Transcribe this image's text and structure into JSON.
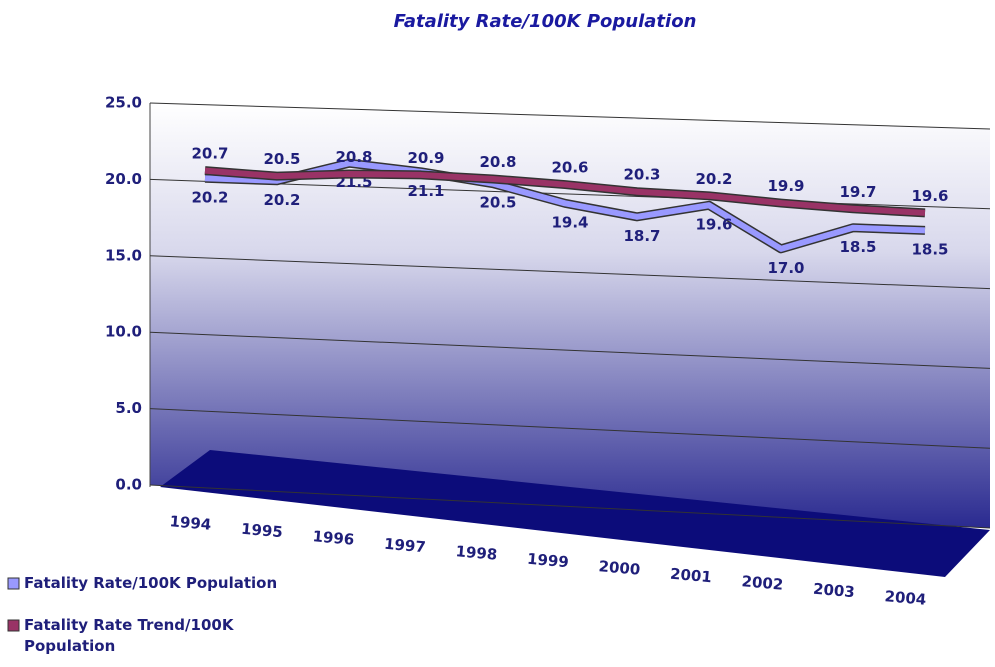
{
  "chart_data": {
    "type": "line",
    "title": "Fatality Rate/100K Population",
    "categories": [
      "1994",
      "1995",
      "1996",
      "1997",
      "1998",
      "1999",
      "2000",
      "2001",
      "2002",
      "2003",
      "2004"
    ],
    "series": [
      {
        "name": "Fatality Rate/100K Population",
        "color": "#9999ff",
        "values": [
          20.2,
          20.2,
          21.5,
          21.1,
          20.5,
          19.4,
          18.7,
          19.6,
          17.0,
          18.5,
          18.5
        ],
        "value_labels": [
          "20.2",
          "20.2",
          "21.5",
          "21.1",
          "20.5",
          "19.4",
          "18.7",
          "19.6",
          "17.0",
          "18.5",
          "18.5"
        ]
      },
      {
        "name": "Fatality Rate Trend/100K Population",
        "color": "#993366",
        "values": [
          20.7,
          20.5,
          20.8,
          20.9,
          20.8,
          20.6,
          20.3,
          20.2,
          19.9,
          19.7,
          19.6
        ]
      }
    ],
    "ylim": [
      0,
      25
    ],
    "yticks": [
      {
        "value": 0,
        "label": "0.0"
      },
      {
        "value": 5,
        "label": "5.0"
      },
      {
        "value": 10,
        "label": "10.0"
      },
      {
        "value": 15,
        "label": "15.0"
      },
      {
        "value": 20,
        "label": "20.0"
      },
      {
        "value": 25,
        "label": "25.0"
      }
    ],
    "grid": true,
    "legend": "bottom-left"
  }
}
